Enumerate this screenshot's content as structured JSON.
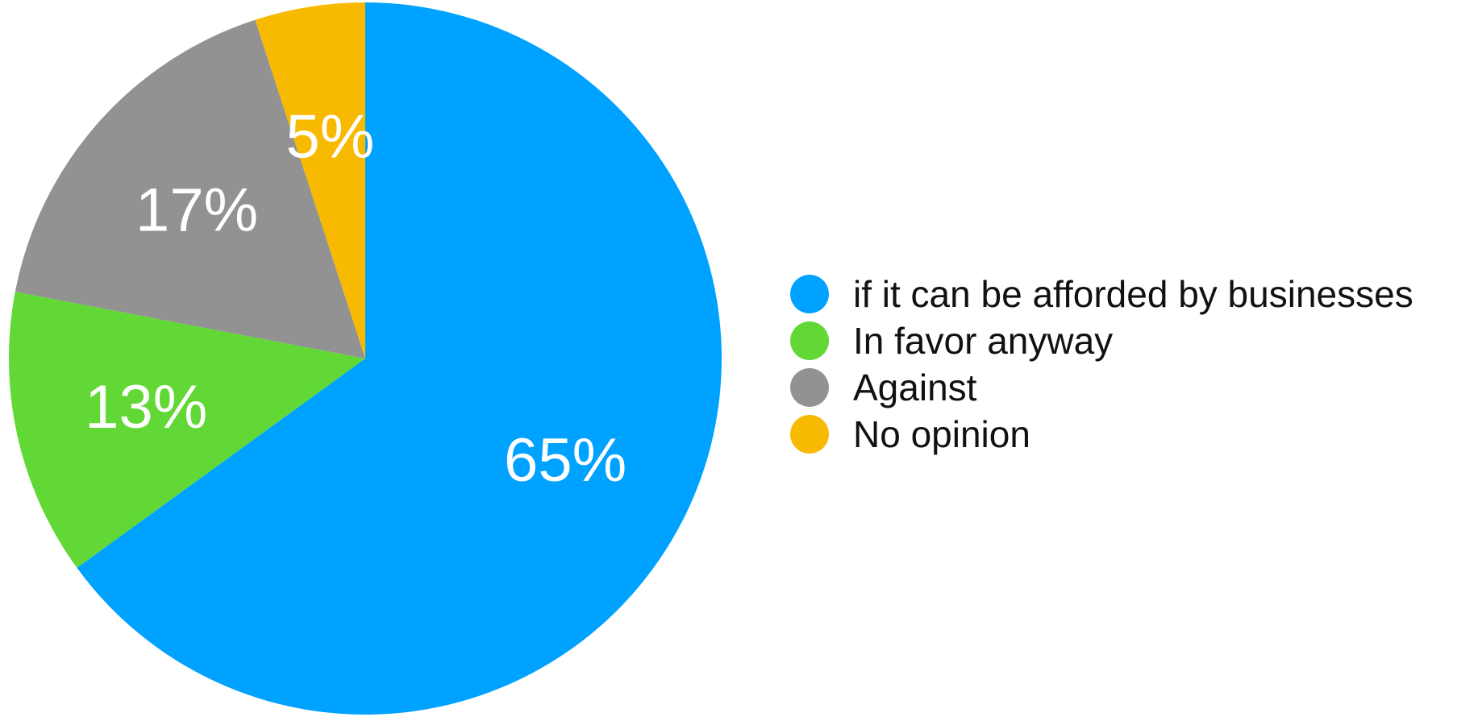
{
  "chart_data": {
    "type": "pie",
    "title": "",
    "legend_position": "right",
    "start_angle_deg": 0,
    "direction": "clockwise",
    "slices": [
      {
        "label": "if it can be afforded by businesses",
        "value": 65,
        "display": "65%",
        "color": "#00A2FF"
      },
      {
        "label": "In favor anyway",
        "value": 13,
        "display": "13%",
        "color": "#61D836"
      },
      {
        "label": "Against",
        "value": 17,
        "display": "17%",
        "color": "#929292"
      },
      {
        "label": "No opinion",
        "value": 5,
        "display": "5%",
        "color": "#F8BA00"
      }
    ]
  }
}
